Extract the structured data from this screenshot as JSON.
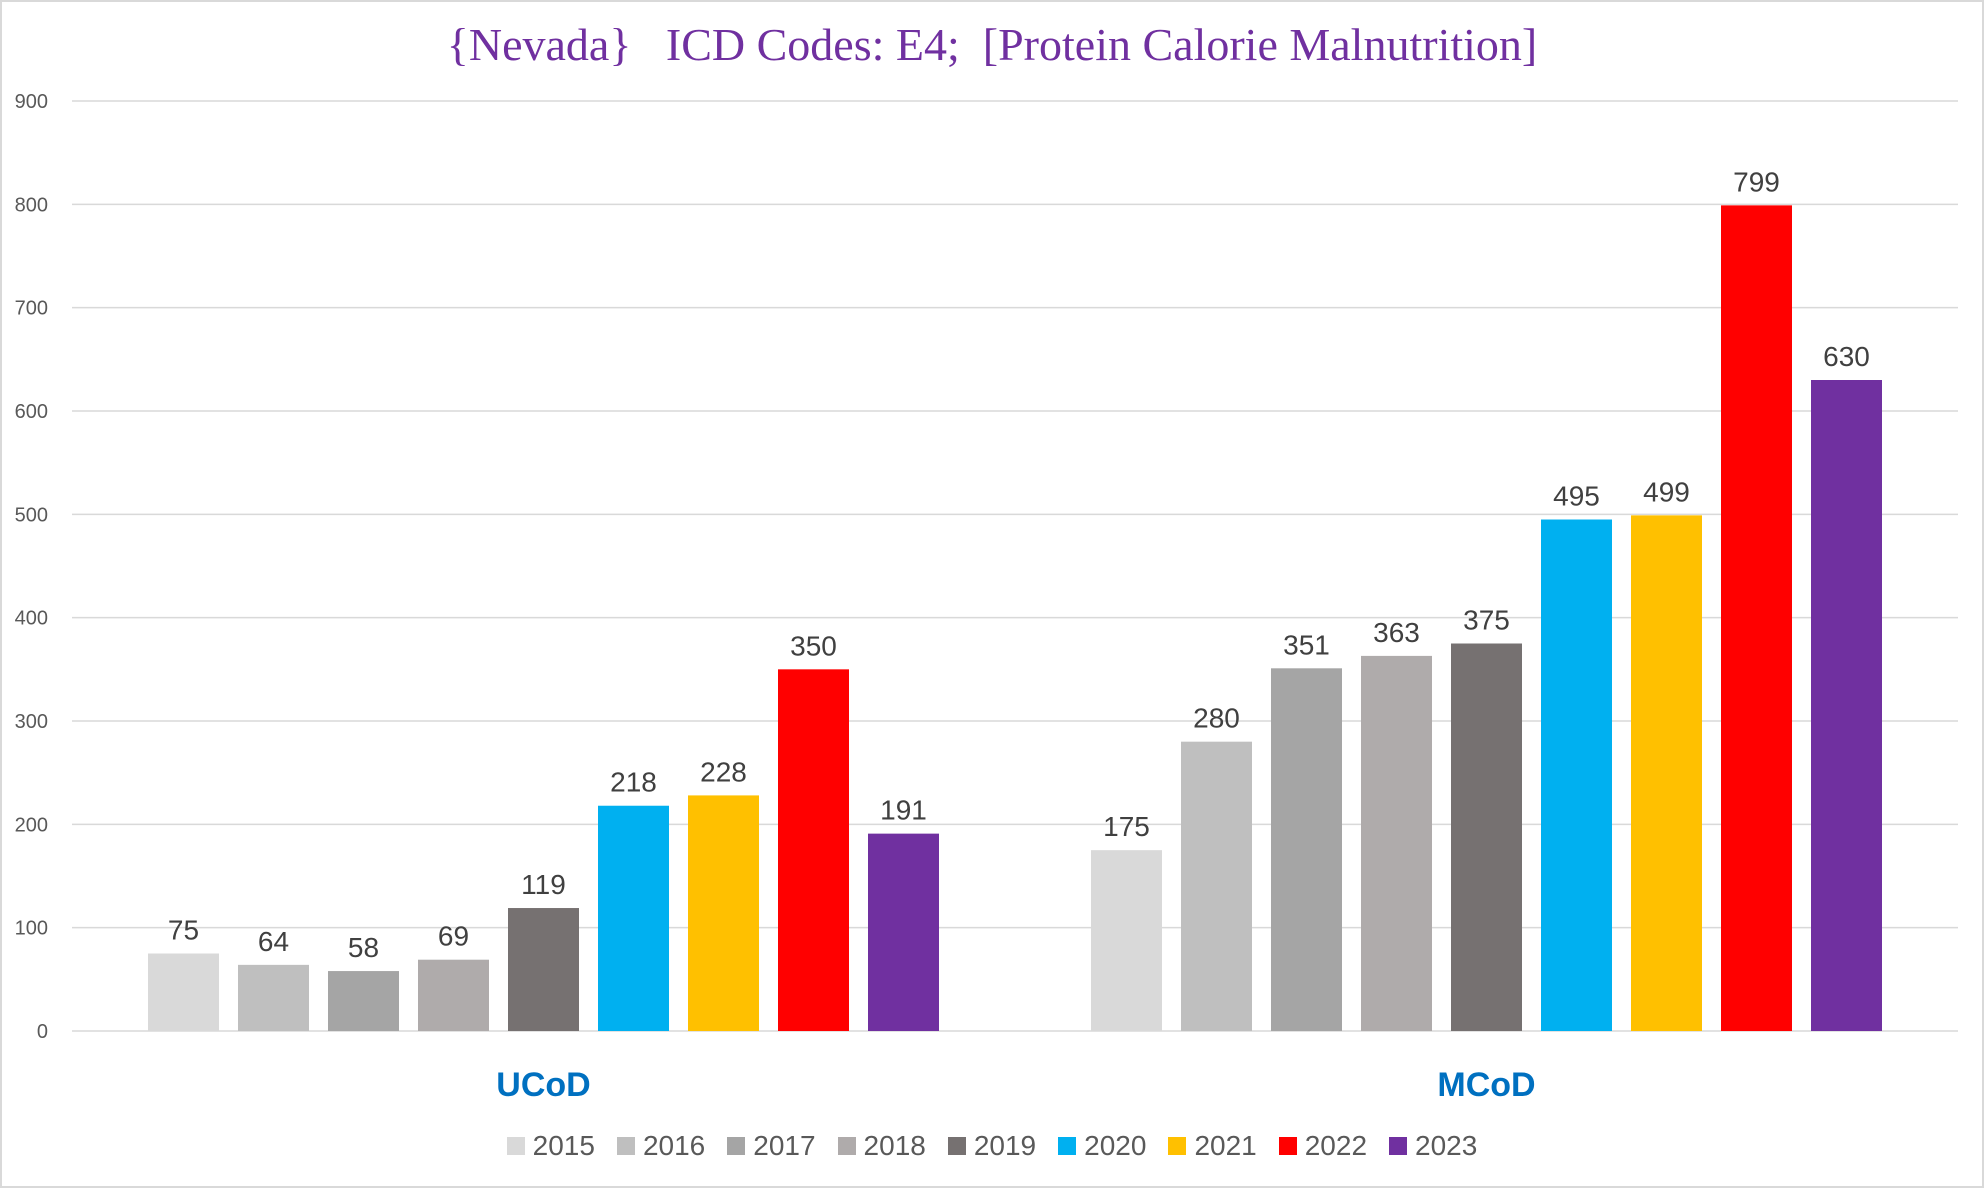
{
  "chart_data": {
    "type": "bar",
    "title": "{Nevada}   ICD Codes: E4;  [Protein Calorie Malnutrition]",
    "categories": [
      "UCoD",
      "MCoD"
    ],
    "series": [
      {
        "name": "2015",
        "color": "#d9d9d9",
        "values": [
          75,
          175
        ]
      },
      {
        "name": "2016",
        "color": "#bfbfbf",
        "values": [
          64,
          280
        ]
      },
      {
        "name": "2017",
        "color": "#a5a5a5",
        "values": [
          58,
          351
        ]
      },
      {
        "name": "2018",
        "color": "#afabab",
        "values": [
          69,
          363
        ]
      },
      {
        "name": "2019",
        "color": "#767171",
        "values": [
          119,
          375
        ]
      },
      {
        "name": "2020",
        "color": "#00b0f0",
        "values": [
          218,
          495
        ]
      },
      {
        "name": "2021",
        "color": "#ffc000",
        "values": [
          228,
          499
        ]
      },
      {
        "name": "2022",
        "color": "#ff0000",
        "values": [
          350,
          799
        ]
      },
      {
        "name": "2023",
        "color": "#7030a0",
        "values": [
          191,
          630
        ]
      }
    ],
    "yticks": [
      0,
      100,
      200,
      300,
      400,
      500,
      600,
      700,
      800,
      900
    ],
    "ylim": [
      0,
      900
    ],
    "xlabel": "",
    "ylabel": "",
    "grid": true,
    "legend": "bottom"
  }
}
